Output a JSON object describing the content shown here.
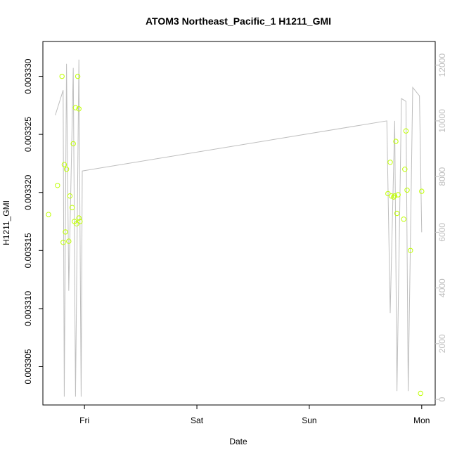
{
  "chart_data": {
    "type": "scatter",
    "title": "ATOM3 Northeast_Pacific_1 H1211_GMI",
    "xlabel": "Date",
    "ylabel": "H1211_GMI",
    "x_unit": "days",
    "x_ticks": [
      {
        "value": 1.0,
        "label": "Fri"
      },
      {
        "value": 2.0,
        "label": "Sat"
      },
      {
        "value": 3.0,
        "label": "Sun"
      },
      {
        "value": 4.0,
        "label": "Mon"
      }
    ],
    "xlim": [
      0.63,
      4.12
    ],
    "ylim": [
      0.0033017,
      0.003333
    ],
    "y_ticks": [
      0.003305,
      0.00331,
      0.003315,
      0.00332,
      0.003325,
      0.00333
    ],
    "y_tick_labels": [
      "0.003305",
      "0.003310",
      "0.003315",
      "0.003320",
      "0.003325",
      "0.003330"
    ],
    "y2lim": [
      -200,
      12850
    ],
    "y2_ticks": [
      0,
      2000,
      4000,
      6000,
      8000,
      10000,
      12000
    ],
    "y2_tick_labels": [
      "0",
      "2000",
      "4000",
      "6000",
      "8000",
      "10000",
      "12000"
    ],
    "grid": false,
    "points_color": "#bfff00",
    "secondary_line_color": "#bebebe",
    "series": [
      {
        "kind": "points",
        "axis": "left",
        "points": [
          [
            0.68,
            0.0033181
          ],
          [
            0.76,
            0.0033206
          ],
          [
            0.8,
            0.00333
          ],
          [
            0.81,
            0.0033157
          ],
          [
            0.82,
            0.0033224
          ],
          [
            0.83,
            0.0033166
          ],
          [
            0.84,
            0.003322
          ],
          [
            0.86,
            0.0033158
          ],
          [
            0.87,
            0.0033197
          ],
          [
            0.89,
            0.0033187
          ],
          [
            0.9,
            0.0033242
          ],
          [
            0.91,
            0.0033175
          ],
          [
            0.92,
            0.0033273
          ],
          [
            0.93,
            0.0033173
          ],
          [
            0.94,
            0.00333
          ],
          [
            0.95,
            0.0033178
          ],
          [
            0.95,
            0.0033272
          ],
          [
            0.96,
            0.0033175
          ],
          [
            3.7,
            0.0033199
          ],
          [
            3.72,
            0.0033226
          ],
          [
            3.73,
            0.0033197
          ],
          [
            3.75,
            0.0033196
          ],
          [
            3.76,
            0.0033197
          ],
          [
            3.77,
            0.0033244
          ],
          [
            3.78,
            0.0033182
          ],
          [
            3.79,
            0.0033198
          ],
          [
            3.84,
            0.0033177
          ],
          [
            3.85,
            0.003322
          ],
          [
            3.86,
            0.0033253
          ],
          [
            3.87,
            0.0033202
          ],
          [
            3.9,
            0.003315
          ],
          [
            3.99,
            0.0033027
          ],
          [
            4.0,
            0.0033201
          ]
        ]
      },
      {
        "kind": "line",
        "axis": "right",
        "points": [
          [
            0.74,
            10200
          ],
          [
            0.81,
            11100
          ],
          [
            0.82,
            100
          ],
          [
            0.84,
            12050
          ],
          [
            0.86,
            3900
          ],
          [
            0.9,
            11900
          ],
          [
            0.92,
            100
          ],
          [
            0.95,
            12200
          ],
          [
            0.97,
            100
          ],
          [
            0.98,
            8200
          ],
          [
            3.69,
            10000
          ],
          [
            3.72,
            3100
          ],
          [
            3.76,
            10000
          ],
          [
            3.78,
            300
          ],
          [
            3.82,
            10800
          ],
          [
            3.86,
            10700
          ],
          [
            3.88,
            300
          ],
          [
            3.92,
            11200
          ],
          [
            3.98,
            10900
          ],
          [
            4.0,
            6000
          ]
        ]
      }
    ]
  }
}
